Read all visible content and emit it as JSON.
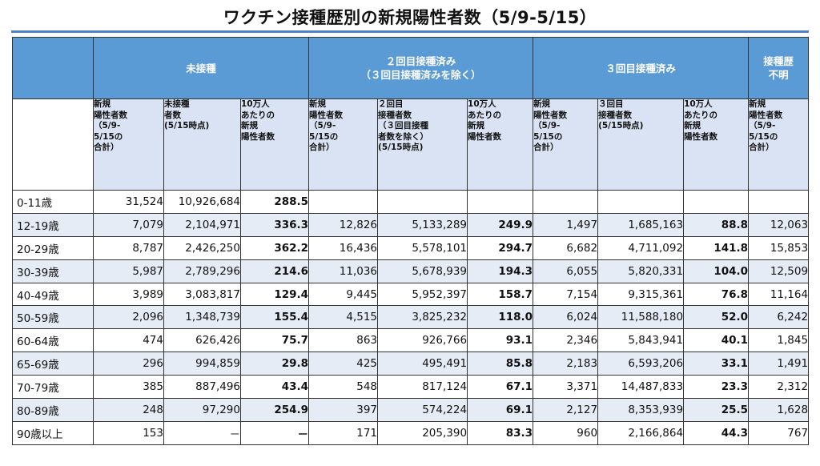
{
  "title": "ワクチン接種歴別の新規陽性者数（5/9-5/15）",
  "groups": {
    "unvaccinated": "未接種",
    "dose2_line1": "２回目接種済み",
    "dose2_line2": "（３回目接種済みを除く）",
    "dose3": "３回目接種済み",
    "unknown_line1": "接種歴",
    "unknown_line2": "不明"
  },
  "subheaders": {
    "unvax_new": "新規\n陽性者数\n（5/9-\n5/15の\n合計）",
    "unvax_count": "未接種\n者数\n(5/15時点)",
    "unvax_rate": "10万人\nあたりの\n新規\n陽性者数",
    "d2_new": "新規\n陽性者数\n（5/9-\n5/15の\n合計）",
    "d2_count": "２回目\n接種者数\n（３回目接種\n者数を除く）\n(5/15時点)",
    "d2_rate": "10万人\nあたりの\n新規\n陽性者数",
    "d3_new": "新規\n陽性者数\n（5/9-\n5/15の\n合計）",
    "d3_count": "３回目\n接種者数\n(5/15時点)",
    "d3_rate": "10万人\nあたりの\n新規\n陽性者数",
    "unk_new": "新規\n陽性者数\n（5/9-\n5/15の\n合計）"
  },
  "rows": [
    {
      "age": "0-11歳",
      "u_new": "31,524",
      "u_cnt": "10,926,684",
      "u_rate": "288.5",
      "d2_new": "",
      "d2_cnt": "",
      "d2_rate": "",
      "d3_new": "",
      "d3_cnt": "",
      "d3_rate": "",
      "unk": ""
    },
    {
      "age": "12-19歳",
      "u_new": "7,079",
      "u_cnt": "2,104,971",
      "u_rate": "336.3",
      "d2_new": "12,826",
      "d2_cnt": "5,133,289",
      "d2_rate": "249.9",
      "d3_new": "1,497",
      "d3_cnt": "1,685,163",
      "d3_rate": "88.8",
      "unk": "12,063"
    },
    {
      "age": "20-29歳",
      "u_new": "8,787",
      "u_cnt": "2,426,250",
      "u_rate": "362.2",
      "d2_new": "16,436",
      "d2_cnt": "5,578,101",
      "d2_rate": "294.7",
      "d3_new": "6,682",
      "d3_cnt": "4,711,092",
      "d3_rate": "141.8",
      "unk": "15,853"
    },
    {
      "age": "30-39歳",
      "u_new": "5,987",
      "u_cnt": "2,789,296",
      "u_rate": "214.6",
      "d2_new": "11,036",
      "d2_cnt": "5,678,939",
      "d2_rate": "194.3",
      "d3_new": "6,055",
      "d3_cnt": "5,820,331",
      "d3_rate": "104.0",
      "unk": "12,509"
    },
    {
      "age": "40-49歳",
      "u_new": "3,989",
      "u_cnt": "3,083,817",
      "u_rate": "129.4",
      "d2_new": "9,445",
      "d2_cnt": "5,952,397",
      "d2_rate": "158.7",
      "d3_new": "7,154",
      "d3_cnt": "9,315,361",
      "d3_rate": "76.8",
      "unk": "11,164"
    },
    {
      "age": "50-59歳",
      "u_new": "2,096",
      "u_cnt": "1,348,739",
      "u_rate": "155.4",
      "d2_new": "4,515",
      "d2_cnt": "3,825,232",
      "d2_rate": "118.0",
      "d3_new": "6,024",
      "d3_cnt": "11,588,180",
      "d3_rate": "52.0",
      "unk": "6,242"
    },
    {
      "age": "60-64歳",
      "u_new": "474",
      "u_cnt": "626,426",
      "u_rate": "75.7",
      "d2_new": "863",
      "d2_cnt": "926,766",
      "d2_rate": "93.1",
      "d3_new": "2,346",
      "d3_cnt": "5,843,941",
      "d3_rate": "40.1",
      "unk": "1,845"
    },
    {
      "age": "65-69歳",
      "u_new": "296",
      "u_cnt": "994,859",
      "u_rate": "29.8",
      "d2_new": "425",
      "d2_cnt": "495,491",
      "d2_rate": "85.8",
      "d3_new": "2,183",
      "d3_cnt": "6,593,206",
      "d3_rate": "33.1",
      "unk": "1,491"
    },
    {
      "age": "70-79歳",
      "u_new": "385",
      "u_cnt": "887,496",
      "u_rate": "43.4",
      "d2_new": "548",
      "d2_cnt": "817,124",
      "d2_rate": "67.1",
      "d3_new": "3,371",
      "d3_cnt": "14,487,833",
      "d3_rate": "23.3",
      "unk": "2,312"
    },
    {
      "age": "80-89歳",
      "u_new": "248",
      "u_cnt": "97,290",
      "u_rate": "254.9",
      "d2_new": "397",
      "d2_cnt": "574,224",
      "d2_rate": "69.1",
      "d3_new": "2,127",
      "d3_cnt": "8,353,939",
      "d3_rate": "25.5",
      "unk": "1,628"
    },
    {
      "age": "90歳以上",
      "u_new": "153",
      "u_cnt": "－",
      "u_rate": "－",
      "d2_new": "171",
      "d2_cnt": "205,390",
      "d2_rate": "83.3",
      "d3_new": "960",
      "d3_cnt": "2,166,864",
      "d3_rate": "44.3",
      "unk": "767"
    }
  ]
}
